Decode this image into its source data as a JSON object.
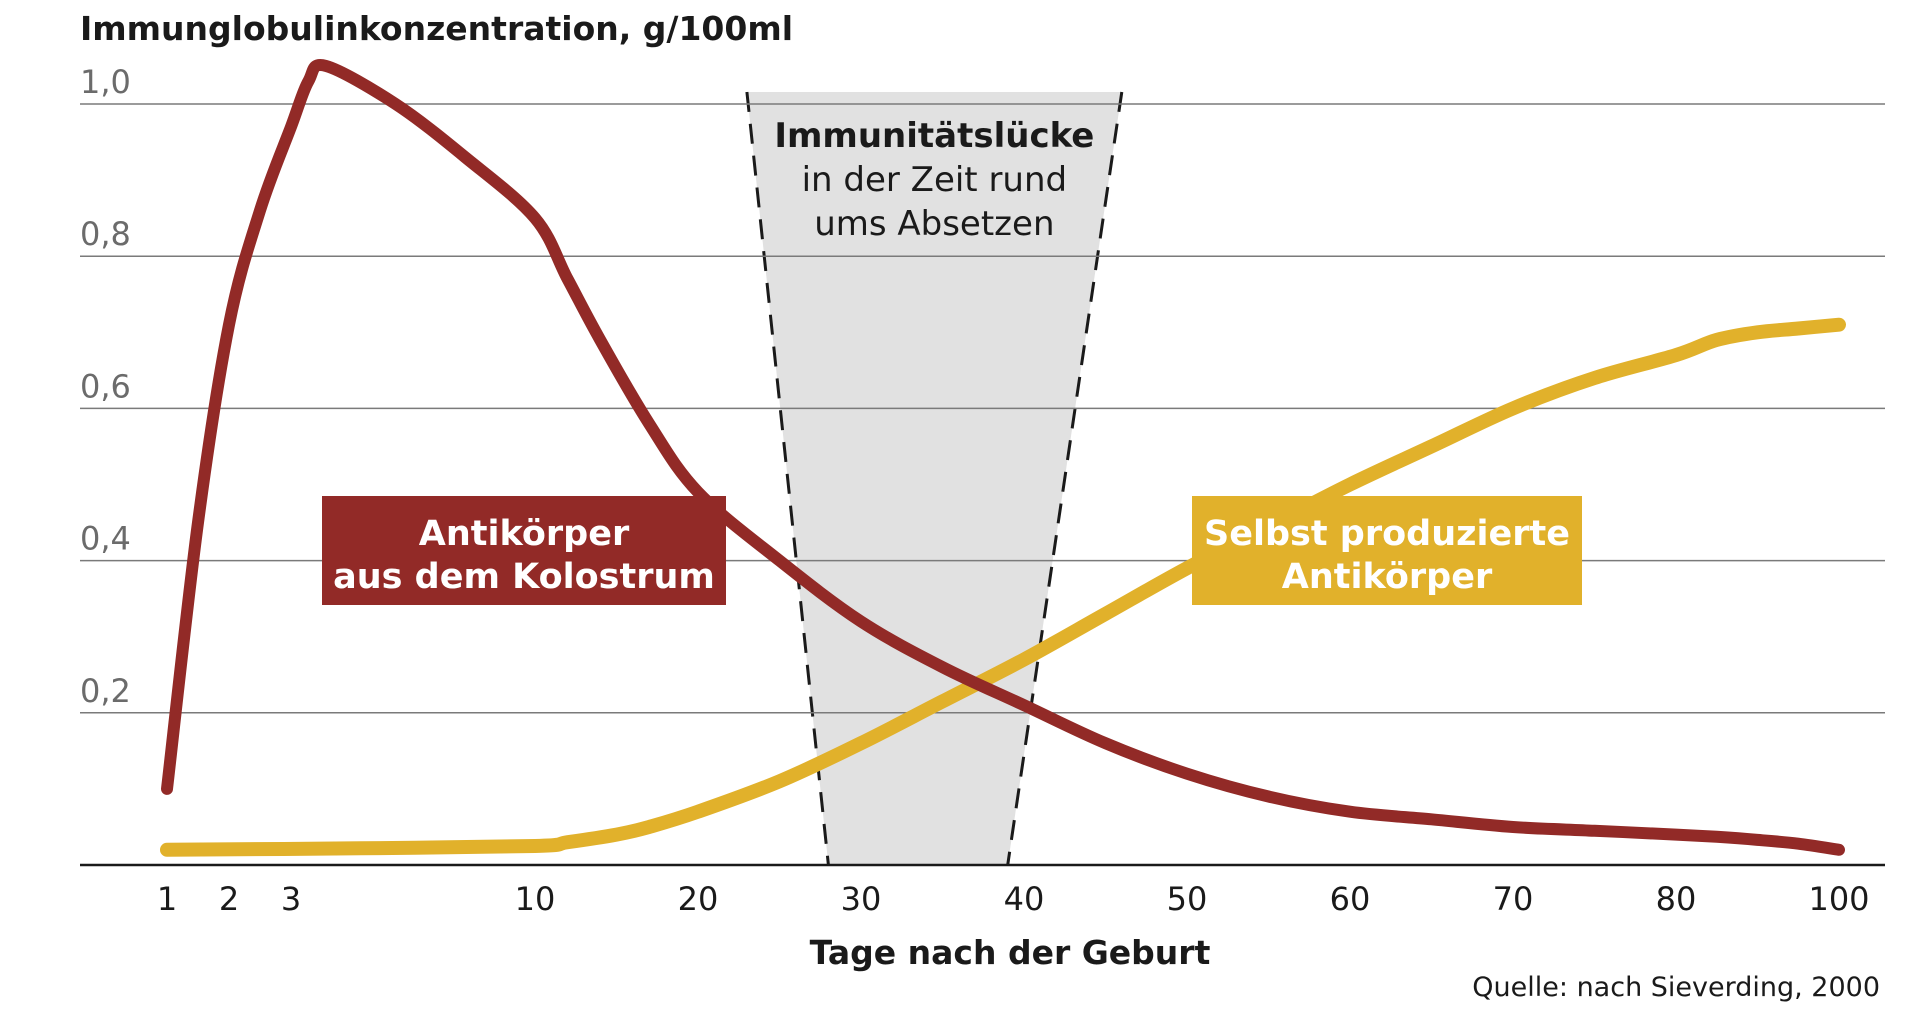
{
  "chart_data": {
    "type": "line",
    "ylabel": "Immunglobulinkonzentration, g/100ml",
    "xlabel": "Tage nach der Geburt",
    "source": "Quelle: nach Sieverding, 2000",
    "ylim": [
      0,
      1.0
    ],
    "yticks": [
      "0,2",
      "0,4",
      "0,6",
      "0,8",
      "1,0"
    ],
    "ytick_values": [
      0.2,
      0.4,
      0.6,
      0.8,
      1.0
    ],
    "xticks": [
      "1",
      "2",
      "3",
      "10",
      "20",
      "30",
      "40",
      "50",
      "60",
      "70",
      "80",
      "100"
    ],
    "grid": true,
    "gap": {
      "title": "Immunitätslücke",
      "line1": "in der Zeit rund",
      "line2": "ums Absetzen",
      "bottom_from": 28,
      "bottom_to": 39,
      "top_from": 23,
      "top_to": 46,
      "color": "#e1e1e1"
    },
    "series": [
      {
        "name": "Antikörper aus dem Kolostrum",
        "label_line1": "Antikörper",
        "label_line2": "aus dem Kolostrum",
        "color": "#922a27",
        "x": [
          1,
          1.5,
          2,
          2.5,
          3,
          3.5,
          4,
          6,
          8,
          10,
          12,
          14,
          17,
          20,
          25,
          30,
          35,
          40,
          45,
          50,
          55,
          60,
          65,
          70,
          75,
          80,
          85,
          90,
          95,
          100
        ],
        "y": [
          0.1,
          0.45,
          0.71,
          0.86,
          0.97,
          1.03,
          1.05,
          1.0,
          0.93,
          0.85,
          0.77,
          0.69,
          0.58,
          0.49,
          0.4,
          0.32,
          0.26,
          0.21,
          0.16,
          0.12,
          0.09,
          0.07,
          0.06,
          0.05,
          0.045,
          0.04,
          0.037,
          0.033,
          0.028,
          0.02
        ]
      },
      {
        "name": "Selbst produzierte Antikörper",
        "label_line1": "Selbst produzierte",
        "label_line2": "Antikörper",
        "color": "#e1b12b",
        "x": [
          1,
          5,
          10,
          12,
          15,
          17,
          20,
          25,
          30,
          35,
          40,
          45,
          50,
          55,
          60,
          65,
          70,
          75,
          80,
          85,
          90,
          95,
          100
        ],
        "y": [
          0.02,
          0.022,
          0.025,
          0.03,
          0.04,
          0.05,
          0.07,
          0.11,
          0.16,
          0.215,
          0.27,
          0.33,
          0.39,
          0.445,
          0.5,
          0.55,
          0.6,
          0.64,
          0.67,
          0.69,
          0.7,
          0.705,
          0.71
        ]
      }
    ]
  }
}
